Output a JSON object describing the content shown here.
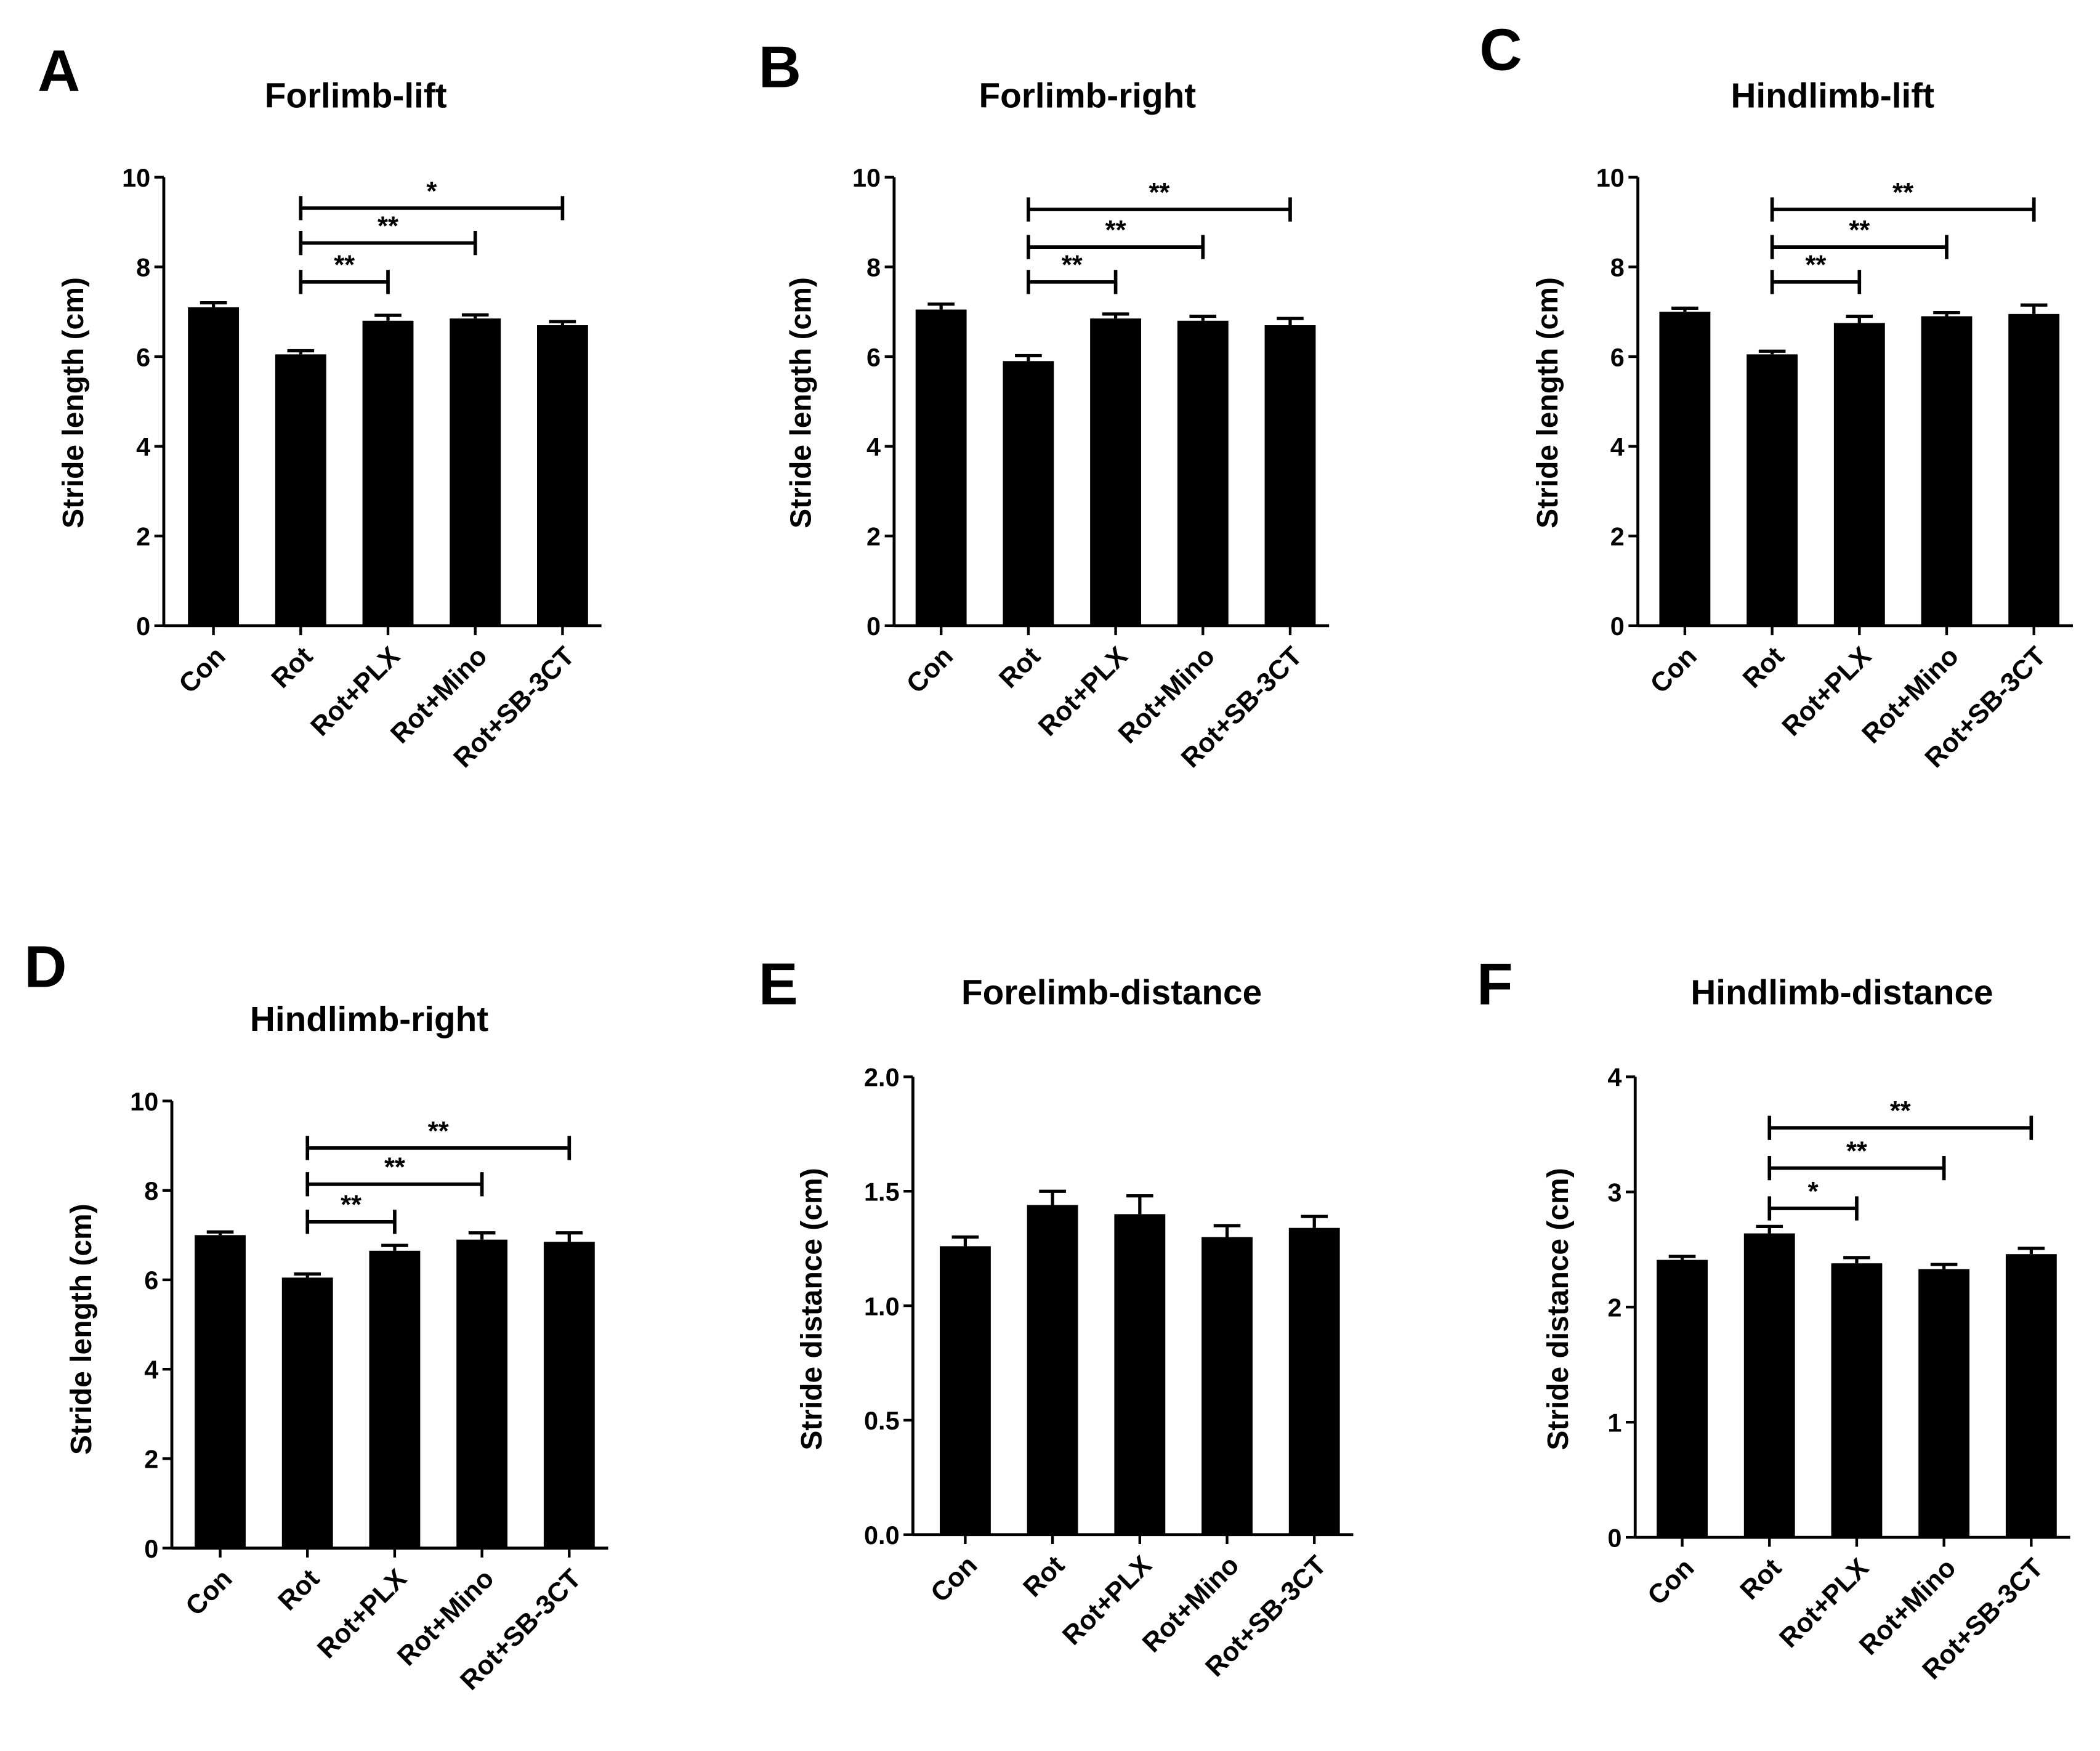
{
  "figure": {
    "categories": [
      "Con",
      "Rot",
      "Rot+PLX",
      "Rot+Mino",
      "Rot+SB-3CT"
    ],
    "bar_color": "#000000"
  },
  "chart_data": [
    {
      "panel": "A",
      "type": "bar",
      "title": "Forlimb-lift",
      "ylabel": "Stride length (cm)",
      "ylim": [
        0,
        10
      ],
      "yticks": [
        "0",
        "2",
        "4",
        "6",
        "8",
        "10"
      ],
      "categories": [
        "Con",
        "Rot",
        "Rot+PLX",
        "Rot+Mino",
        "Rot+SB-3CT"
      ],
      "values": [
        7.1,
        6.05,
        6.8,
        6.85,
        6.7
      ],
      "errors": [
        0.1,
        0.08,
        0.12,
        0.08,
        0.08
      ],
      "significance": [
        {
          "from": "Rot",
          "to": "Rot+PLX",
          "label": "**"
        },
        {
          "from": "Rot",
          "to": "Rot+Mino",
          "label": "**"
        },
        {
          "from": "Rot",
          "to": "Rot+SB-3CT",
          "label": "*"
        }
      ]
    },
    {
      "panel": "B",
      "type": "bar",
      "title": "Forlimb-right",
      "ylabel": "Stride length (cm)",
      "ylim": [
        0,
        10
      ],
      "yticks": [
        "0",
        "2",
        "4",
        "6",
        "8",
        "10"
      ],
      "categories": [
        "Con",
        "Rot",
        "Rot+PLX",
        "Rot+Mino",
        "Rot+SB-3CT"
      ],
      "values": [
        7.05,
        5.9,
        6.85,
        6.8,
        6.7
      ],
      "errors": [
        0.12,
        0.12,
        0.1,
        0.1,
        0.15
      ],
      "significance": [
        {
          "from": "Rot",
          "to": "Rot+PLX",
          "label": "**"
        },
        {
          "from": "Rot",
          "to": "Rot+Mino",
          "label": "**"
        },
        {
          "from": "Rot",
          "to": "Rot+SB-3CT",
          "label": "**"
        }
      ]
    },
    {
      "panel": "C",
      "type": "bar",
      "title": "Hindlimb-lift",
      "ylabel": "Stride length (cm)",
      "ylim": [
        0,
        10
      ],
      "yticks": [
        "0",
        "2",
        "4",
        "6",
        "8",
        "10"
      ],
      "categories": [
        "Con",
        "Rot",
        "Rot+PLX",
        "Rot+Mino",
        "Rot+SB-3CT"
      ],
      "values": [
        7.0,
        6.05,
        6.75,
        6.9,
        6.95
      ],
      "errors": [
        0.08,
        0.07,
        0.15,
        0.08,
        0.2
      ],
      "significance": [
        {
          "from": "Rot",
          "to": "Rot+PLX",
          "label": "**"
        },
        {
          "from": "Rot",
          "to": "Rot+Mino",
          "label": "**"
        },
        {
          "from": "Rot",
          "to": "Rot+SB-3CT",
          "label": "**"
        }
      ]
    },
    {
      "panel": "D",
      "type": "bar",
      "title": "Hindlimb-right",
      "ylabel": "Stride length (cm)",
      "ylim": [
        0,
        10
      ],
      "yticks": [
        "0",
        "2",
        "4",
        "6",
        "8",
        "10"
      ],
      "categories": [
        "Con",
        "Rot",
        "Rot+PLX",
        "Rot+Mino",
        "Rot+SB-3CT"
      ],
      "values": [
        7.0,
        6.05,
        6.65,
        6.9,
        6.85
      ],
      "errors": [
        0.07,
        0.08,
        0.12,
        0.15,
        0.2
      ],
      "significance": [
        {
          "from": "Rot",
          "to": "Rot+PLX",
          "label": "**"
        },
        {
          "from": "Rot",
          "to": "Rot+Mino",
          "label": "**"
        },
        {
          "from": "Rot",
          "to": "Rot+SB-3CT",
          "label": "**"
        }
      ]
    },
    {
      "panel": "E",
      "type": "bar",
      "title": "Forelimb-distance",
      "ylabel": "Stride distance (cm)",
      "ylim": [
        0,
        2.0
      ],
      "yticks": [
        "0.0",
        "0.5",
        "1.0",
        "1.5",
        "2.0"
      ],
      "categories": [
        "Con",
        "Rot",
        "Rot+PLX",
        "Rot+Mino",
        "Rot+SB-3CT"
      ],
      "values": [
        1.26,
        1.44,
        1.4,
        1.3,
        1.34
      ],
      "errors": [
        0.04,
        0.06,
        0.08,
        0.05,
        0.05
      ],
      "significance": []
    },
    {
      "panel": "F",
      "type": "bar",
      "title": "Hindlimb-distance",
      "ylabel": "Stride distance (cm)",
      "ylim": [
        0,
        4
      ],
      "yticks": [
        "0",
        "1",
        "2",
        "3",
        "4"
      ],
      "categories": [
        "Con",
        "Rot",
        "Rot+PLX",
        "Rot+Mino",
        "Rot+SB-3CT"
      ],
      "values": [
        2.41,
        2.64,
        2.38,
        2.33,
        2.46
      ],
      "errors": [
        0.03,
        0.06,
        0.05,
        0.04,
        0.05
      ],
      "significance": [
        {
          "from": "Rot",
          "to": "Rot+PLX",
          "label": "*"
        },
        {
          "from": "Rot",
          "to": "Rot+Mino",
          "label": "**"
        },
        {
          "from": "Rot",
          "to": "Rot+SB-3CT",
          "label": "**"
        }
      ]
    }
  ]
}
